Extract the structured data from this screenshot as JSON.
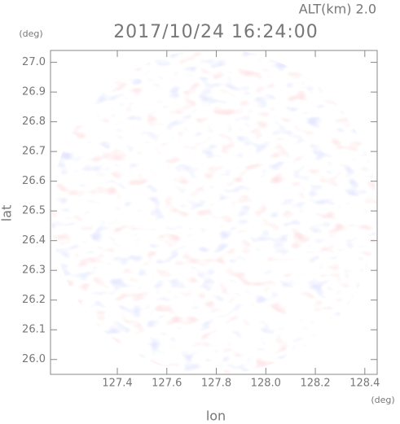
{
  "chart_data": {
    "type": "image",
    "title": "2017/10/24 16:24:00",
    "subtitle": "ALT(km) 2.0",
    "x_label": "lon",
    "y_label": "lat",
    "x_unit": "(deg)",
    "y_unit": "(deg)",
    "xlim": [
      127.13,
      128.45
    ],
    "ylim": [
      25.95,
      27.04
    ],
    "xticks": [
      127.4,
      127.6,
      127.8,
      {
        "value": 128,
        "label": "128.0"
      },
      128.2,
      128.4
    ],
    "yticks": [
      {
        "value": 26,
        "label": "26.0"
      },
      26.1,
      26.2,
      26.3,
      26.4,
      26.5,
      26.6,
      26.7,
      26.8,
      26.9,
      {
        "value": 27,
        "label": "27.0"
      }
    ]
  }
}
